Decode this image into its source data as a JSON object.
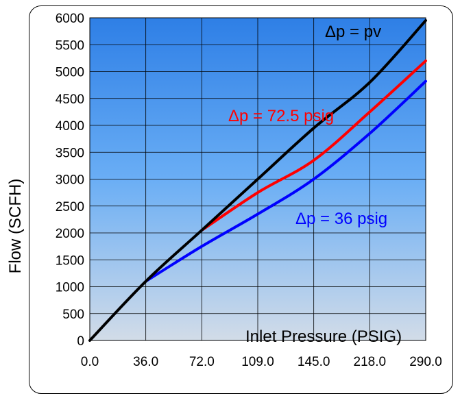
{
  "chart_data": {
    "type": "line",
    "categories": [
      "0.0",
      "36.0",
      "72.0",
      "109.0",
      "145.0",
      "218.0",
      "290.0"
    ],
    "xlabel": "Inlet Pressure (PSIG)",
    "ylabel": "Flow  (SCFH)",
    "ylim": [
      0,
      6000
    ],
    "ytick_step": 500,
    "grid": true,
    "series": [
      {
        "name": "Δp = pv",
        "color": "#000000",
        "values": [
          0,
          1100,
          2050,
          3000,
          3950,
          4800,
          5950
        ]
      },
      {
        "name": "Δp = 72.5 psig",
        "color": "#ff0000",
        "values": [
          null,
          null,
          2050,
          2750,
          3350,
          4250,
          5200
        ]
      },
      {
        "name": "Δp = 36 psig",
        "color": "#0000ff",
        "values": [
          null,
          1100,
          1750,
          2350,
          3000,
          3850,
          4820
        ]
      }
    ],
    "annotations": [
      {
        "text": "Δp = pv",
        "color": "#000000"
      },
      {
        "text": "Δp = 72.5 psig",
        "color": "#ff0000"
      },
      {
        "text": "Δp = 36 psig",
        "color": "#0000ff"
      }
    ]
  }
}
